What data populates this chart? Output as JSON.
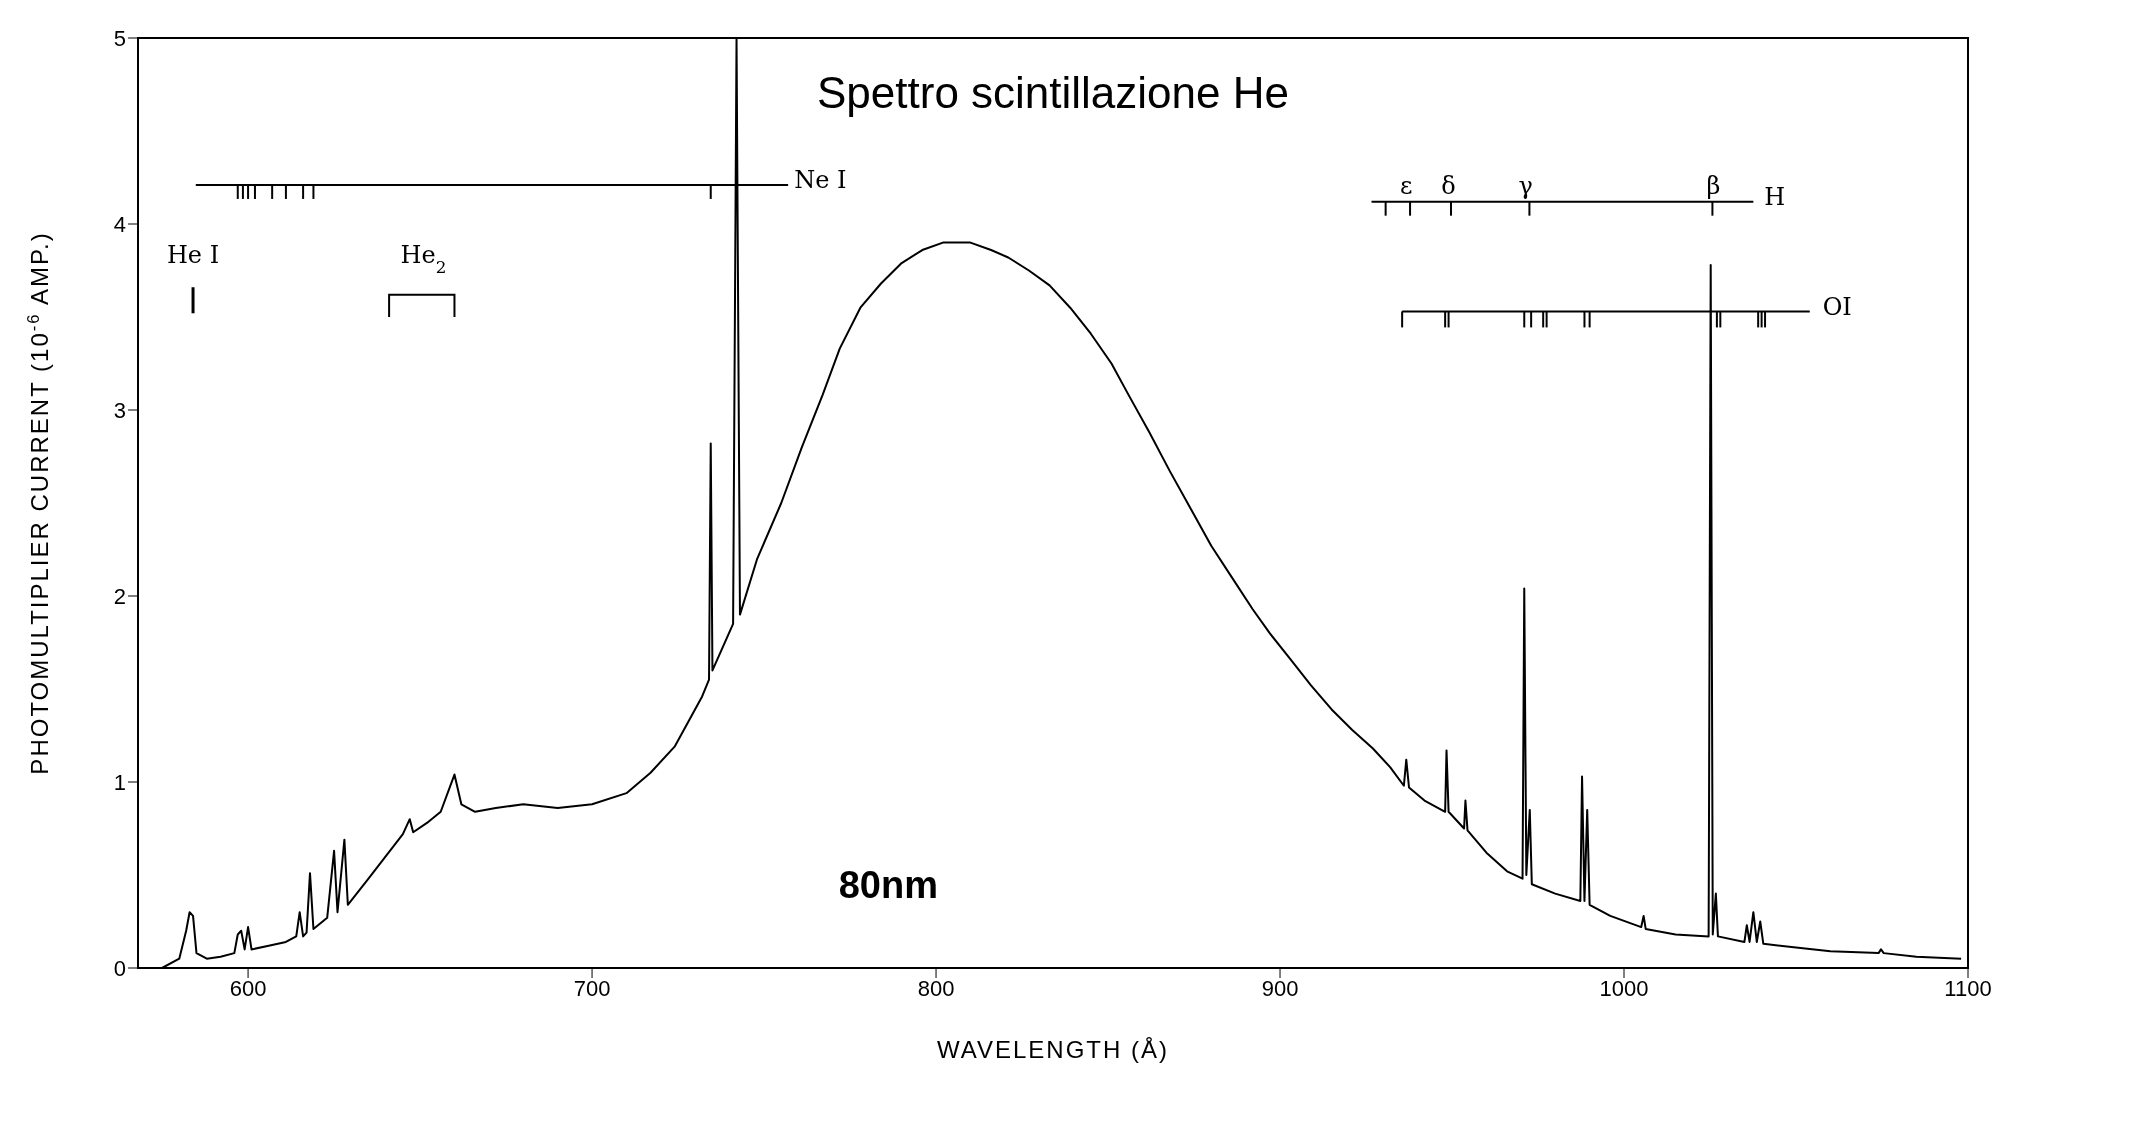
{
  "chart_data": {
    "type": "line",
    "title": "Spettro scintillazione He",
    "xlabel": "WAVELENGTH (Å)",
    "ylabel": "PHOTOMULTIPLIER CURRENT  (10$^{-6}$ AMP.)",
    "annotations": [
      "80nm",
      "Ne I",
      "He I",
      "He$_{2}$",
      "H",
      "OI",
      "ε",
      "δ",
      "γ",
      "β"
    ],
    "x": [
      568,
      575,
      580,
      582,
      583,
      584,
      585,
      588,
      592,
      596,
      597,
      598,
      599,
      600,
      601,
      606,
      611,
      614,
      615,
      616,
      617,
      618,
      619,
      623,
      625,
      626,
      628,
      629,
      635,
      640,
      645,
      647,
      648,
      652,
      656,
      660,
      662,
      666,
      672,
      680,
      690,
      700,
      710,
      717,
      724,
      732,
      734,
      734.5,
      735,
      741,
      742,
      743,
      748,
      755,
      761,
      767,
      772,
      778,
      784,
      790,
      796,
      802,
      810,
      816,
      821,
      827,
      833,
      839,
      845,
      851,
      856,
      862,
      868,
      874,
      880,
      886,
      892,
      897,
      903,
      909,
      915,
      921,
      927,
      932,
      936,
      936.7,
      937.5,
      942,
      948,
      948.4,
      949,
      953.5,
      953.9,
      954.5,
      960,
      966,
      970.5,
      971,
      971.6,
      972.6,
      973.2,
      980,
      987.3,
      987.8,
      988.5,
      989.3,
      990,
      996,
      1005,
      1005.7,
      1006.3,
      1015,
      1024.6,
      1025.2,
      1025.8,
      1026.7,
      1027.3,
      1035,
      1035.7,
      1036.5,
      1037.6,
      1038.6,
      1039.6,
      1040.5,
      1050,
      1060,
      1074,
      1074.7,
      1075.5,
      1085,
      1098
    ],
    "values": [
      0,
      0,
      0.05,
      0.2,
      0.3,
      0.28,
      0.08,
      0.05,
      0.06,
      0.08,
      0.18,
      0.2,
      0.1,
      0.22,
      0.1,
      0.12,
      0.14,
      0.17,
      0.3,
      0.17,
      0.19,
      0.51,
      0.21,
      0.27,
      0.63,
      0.3,
      0.69,
      0.34,
      0.48,
      0.6,
      0.72,
      0.8,
      0.73,
      0.78,
      0.84,
      1.04,
      0.88,
      0.84,
      0.86,
      0.88,
      0.86,
      0.88,
      0.94,
      1.05,
      1.19,
      1.46,
      1.55,
      2.82,
      1.6,
      1.85,
      5.0,
      1.9,
      2.2,
      2.5,
      2.8,
      3.08,
      3.33,
      3.55,
      3.68,
      3.79,
      3.86,
      3.9,
      3.9,
      3.86,
      3.82,
      3.75,
      3.67,
      3.55,
      3.41,
      3.25,
      3.08,
      2.88,
      2.67,
      2.47,
      2.27,
      2.1,
      1.93,
      1.8,
      1.66,
      1.52,
      1.39,
      1.28,
      1.18,
      1.08,
      0.98,
      1.12,
      0.97,
      0.9,
      0.84,
      1.17,
      0.84,
      0.75,
      0.9,
      0.74,
      0.62,
      0.52,
      0.48,
      2.04,
      0.5,
      0.85,
      0.45,
      0.4,
      0.36,
      1.03,
      0.36,
      0.85,
      0.34,
      0.28,
      0.22,
      0.28,
      0.21,
      0.18,
      0.17,
      3.78,
      0.18,
      0.4,
      0.17,
      0.14,
      0.23,
      0.14,
      0.3,
      0.14,
      0.25,
      0.13,
      0.11,
      0.09,
      0.08,
      0.1,
      0.08,
      0.06,
      0.05
    ],
    "color": "#000000",
    "xlim": [
      568,
      1100
    ],
    "ylim": [
      0,
      5
    ],
    "xticks": [
      600,
      700,
      800,
      900,
      1000,
      1100
    ],
    "yticks": [
      0,
      1,
      2,
      3,
      4,
      5
    ]
  }
}
